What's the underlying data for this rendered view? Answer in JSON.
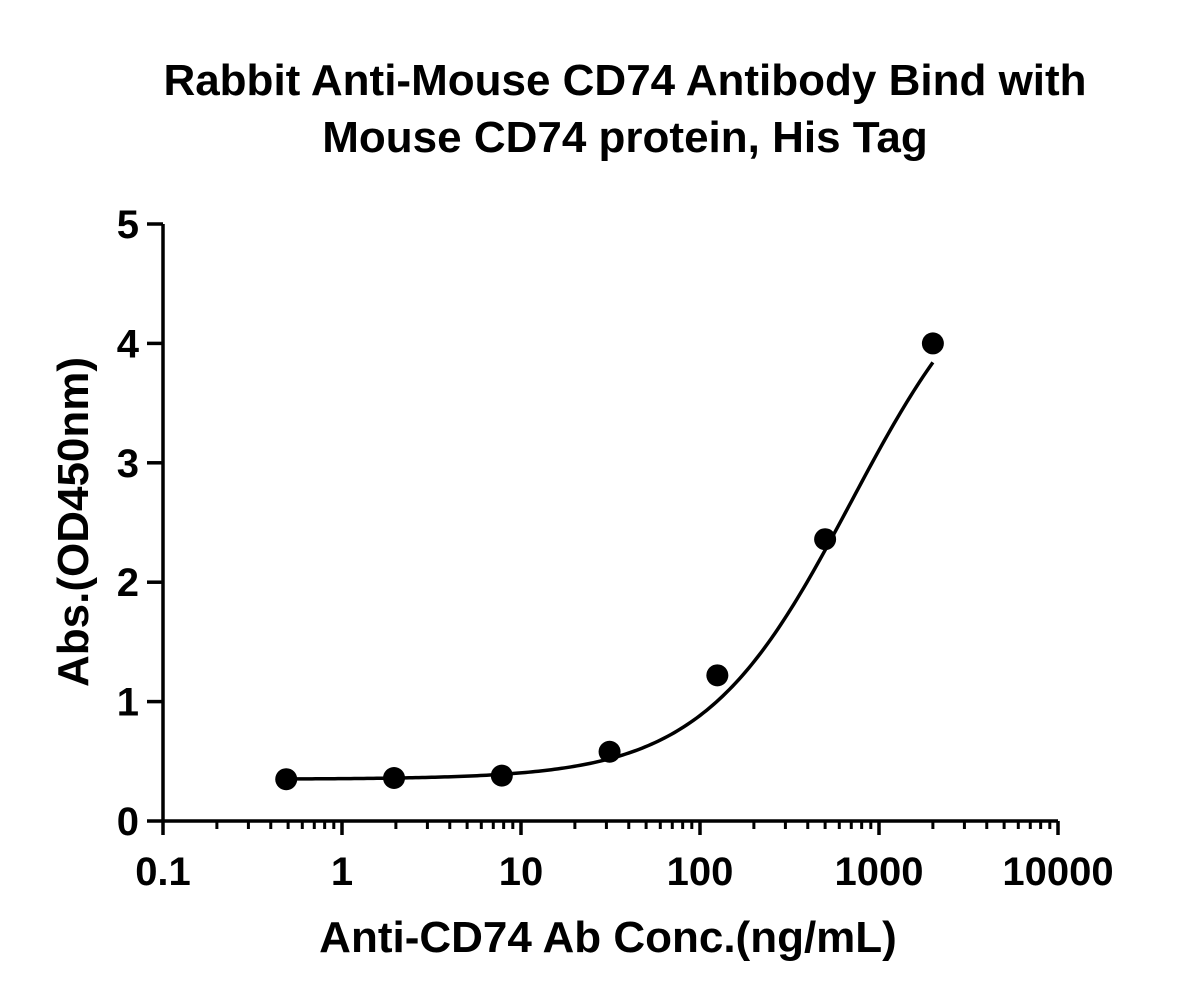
{
  "chart_data": {
    "type": "scatter",
    "title_lines": [
      "Rabbit Anti-Mouse CD74 Antibody Bind with",
      "Mouse CD74 protein, His Tag"
    ],
    "xlabel": "Anti-CD74 Ab Conc.(ng/mL)",
    "ylabel": "Abs.(OD450nm)",
    "xscale": "log",
    "xlim": [
      0.1,
      10000
    ],
    "ylim": [
      0,
      5
    ],
    "xticks": [
      0.1,
      1,
      10,
      100,
      1000,
      10000
    ],
    "xtick_labels": [
      "0.1",
      "1",
      "10",
      "100",
      "1000",
      "10000"
    ],
    "yticks": [
      0,
      1,
      2,
      3,
      4,
      5
    ],
    "ytick_labels": [
      "0",
      "1",
      "2",
      "3",
      "4",
      "5"
    ],
    "grid": false,
    "legend": "none",
    "series": [
      {
        "x": [
          0.488,
          1.953,
          7.813,
          31.25,
          125,
          500,
          2000
        ],
        "y": [
          0.35,
          0.36,
          0.38,
          0.58,
          1.22,
          2.36,
          4.0
        ]
      }
    ],
    "fit_curve": {
      "type": "4PL",
      "bottom": 0.35,
      "top": 5.0,
      "ec50": 700,
      "hill": 1.05
    },
    "colors": {
      "marker": "#000000",
      "line": "#000000",
      "axis": "#000000"
    }
  }
}
